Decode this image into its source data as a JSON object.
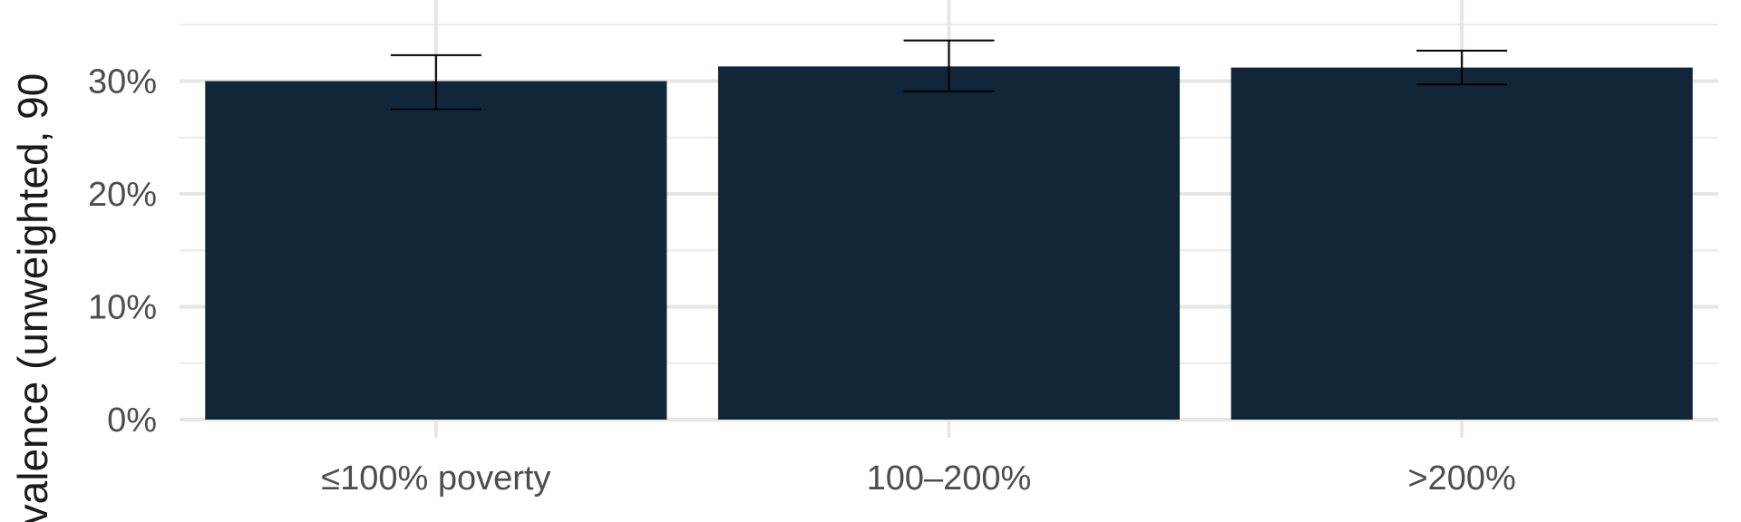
{
  "chart_data": {
    "type": "bar",
    "title": "",
    "xlabel": "",
    "ylabel": "valence (unweighted, 90",
    "categories": [
      "≤100% poverty",
      "100–200%",
      ">200%"
    ],
    "values": [
      0.3,
      0.313,
      0.312
    ],
    "error_low": [
      0.275,
      0.291,
      0.297
    ],
    "error_high": [
      0.323,
      0.336,
      0.327
    ],
    "ylim": [
      0,
      0.35
    ],
    "y_ticks": [
      0,
      0.1,
      0.2,
      0.3
    ],
    "y_tick_labels": [
      "0%",
      "10%",
      "20%",
      "30%"
    ],
    "bar_color": "#12263a",
    "error_bar_color": "#000000",
    "grid": true
  }
}
